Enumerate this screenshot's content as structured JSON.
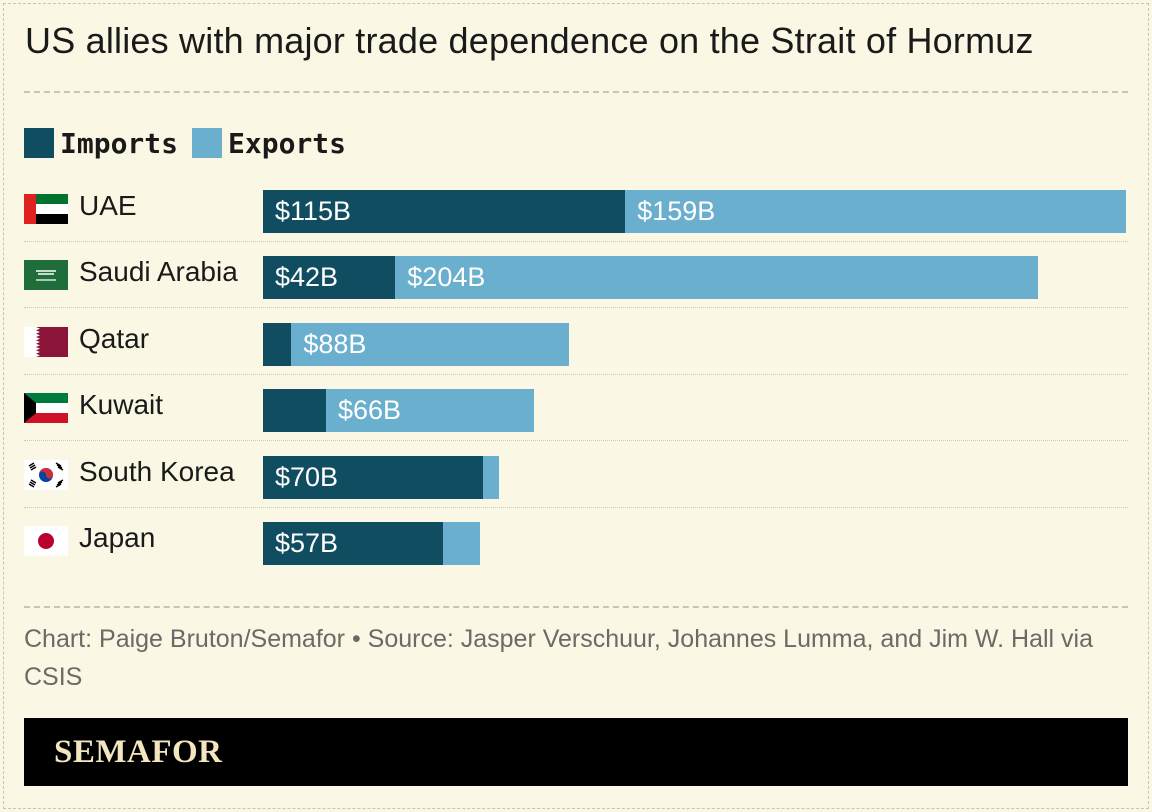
{
  "title": "US allies with major trade dependence on the Strait of Hormuz",
  "legend": [
    {
      "label": "Imports",
      "color": "#104d61"
    },
    {
      "label": "Exports",
      "color": "#6aafce"
    }
  ],
  "footer": "Chart: Paige Bruton/Semafor • Source: Jasper Verschuur, Johannes Lumma, and Jim W. Hall via CSIS",
  "brand": "SEMAFOR",
  "chart_data": {
    "type": "bar",
    "orientation": "horizontal",
    "stacked": true,
    "categories": [
      "UAE",
      "Saudi Arabia",
      "Qatar",
      "Kuwait",
      "South Korea",
      "Japan"
    ],
    "flags": [
      "uae-flag-icon",
      "saudi-arabia-flag-icon",
      "qatar-flag-icon",
      "kuwait-flag-icon",
      "south-korea-flag-icon",
      "japan-flag-icon"
    ],
    "series": [
      {
        "name": "Imports",
        "color": "#104d61",
        "values": [
          115,
          42,
          9,
          20,
          70,
          57
        ]
      },
      {
        "name": "Exports",
        "color": "#6aafce",
        "values": [
          159,
          204,
          88,
          66,
          5,
          12
        ]
      }
    ],
    "labels": [
      [
        "$115B",
        "$159B"
      ],
      [
        "$42B",
        "$204B"
      ],
      [
        "",
        "$88B"
      ],
      [
        "",
        "$66B"
      ],
      [
        "$70B",
        ""
      ],
      [
        "$57B",
        ""
      ]
    ],
    "units": "USD billions",
    "xlim": [
      0,
      274
    ]
  }
}
